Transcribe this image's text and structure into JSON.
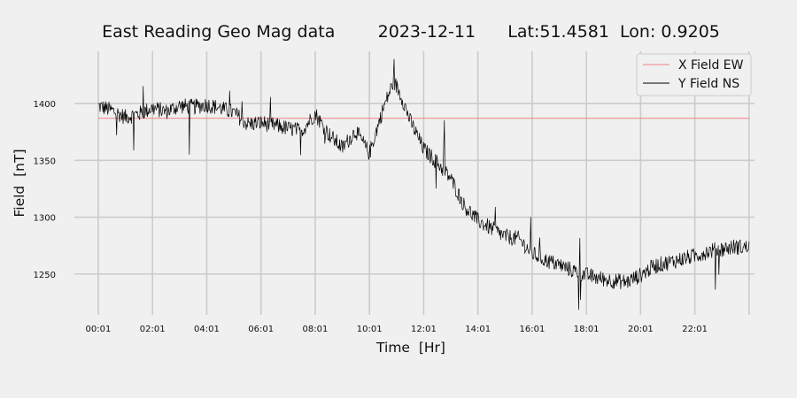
{
  "chart_data": {
    "type": "line",
    "title": "East Reading Geo Mag data        2023-12-11      Lat:51.4581  Lon: 0.9205",
    "xlabel": "Time  [Hr]",
    "ylabel": "Field  [nT]",
    "x_tick_labels": [
      "00:01",
      "02:01",
      "04:01",
      "06:01",
      "08:01",
      "10:01",
      "12:01",
      "14:01",
      "16:01",
      "18:01",
      "20:01",
      "22:01"
    ],
    "x_range_hours": [
      -0.88,
      24.2
    ],
    "y_ticks": [
      1250,
      1300,
      1350,
      1400
    ],
    "ylim": [
      1214,
      1446
    ],
    "grid": true,
    "legend_position": "top-right",
    "series": [
      {
        "name": "X Field EW",
        "color": "#f08080",
        "x": [
          0.0,
          24.0
        ],
        "y": [
          1387,
          1387
        ]
      },
      {
        "name": "Y Field NS",
        "color": "#000000",
        "x": [
          0.0,
          0.5,
          1.0,
          1.5,
          2.0,
          2.5,
          3.0,
          3.5,
          4.0,
          4.5,
          5.0,
          5.5,
          6.0,
          6.5,
          7.0,
          7.5,
          8.0,
          8.5,
          9.0,
          9.5,
          10.0,
          10.5,
          10.9,
          11.2,
          11.5,
          12.0,
          12.5,
          13.0,
          13.5,
          14.0,
          14.5,
          15.0,
          15.5,
          16.0,
          16.5,
          17.0,
          17.5,
          18.0,
          18.5,
          19.0,
          19.5,
          20.0,
          20.5,
          21.0,
          21.5,
          22.0,
          22.5,
          23.0,
          23.5,
          24.0
        ],
        "y": [
          1398,
          1394,
          1388,
          1391,
          1396,
          1393,
          1398,
          1397,
          1399,
          1396,
          1392,
          1382,
          1383,
          1381,
          1378,
          1376,
          1391,
          1373,
          1361,
          1376,
          1356,
          1395,
          1420,
          1405,
          1385,
          1360,
          1348,
          1334,
          1310,
          1297,
          1290,
          1283,
          1281,
          1268,
          1262,
          1258,
          1253,
          1249,
          1246,
          1244,
          1243,
          1249,
          1257,
          1260,
          1263,
          1266,
          1270,
          1272,
          1274,
          1273
        ]
      }
    ]
  }
}
